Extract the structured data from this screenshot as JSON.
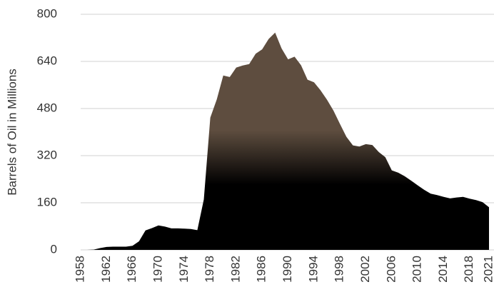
{
  "chart_data": {
    "type": "area",
    "y_label": "Barrels of Oil in Millions",
    "x": [
      1958,
      1959,
      1960,
      1961,
      1962,
      1963,
      1964,
      1965,
      1966,
      1967,
      1968,
      1969,
      1970,
      1971,
      1972,
      1973,
      1974,
      1975,
      1976,
      1977,
      1978,
      1979,
      1980,
      1981,
      1982,
      1983,
      1984,
      1985,
      1986,
      1987,
      1988,
      1989,
      1990,
      1991,
      1992,
      1993,
      1994,
      1995,
      1996,
      1997,
      1998,
      1999,
      2000,
      2001,
      2002,
      2003,
      2004,
      2005,
      2006,
      2007,
      2008,
      2009,
      2010,
      2011,
      2012,
      2013,
      2014,
      2015,
      2016,
      2017,
      2018,
      2019,
      2020,
      2021
    ],
    "values": [
      0,
      0,
      1,
      6,
      10,
      11,
      11,
      11,
      14,
      29,
      66,
      74,
      83,
      79,
      73,
      73,
      72,
      71,
      67,
      171,
      449,
      511,
      592,
      587,
      619,
      626,
      631,
      666,
      681,
      716,
      738,
      684,
      647,
      656,
      627,
      578,
      569,
      542,
      510,
      473,
      428,
      384,
      355,
      351,
      359,
      356,
      332,
      315,
      270,
      262,
      250,
      235,
      219,
      204,
      191,
      186,
      180,
      175,
      178,
      180,
      174,
      169,
      162,
      145
    ],
    "xlim": [
      1958,
      2021
    ],
    "xticks": [
      1958,
      1962,
      1966,
      1970,
      1974,
      1978,
      1982,
      1986,
      1990,
      1994,
      1998,
      2002,
      2006,
      2010,
      2014,
      2018,
      2021
    ],
    "ylim": [
      0,
      800
    ],
    "yticks": [
      0,
      160,
      320,
      480,
      640,
      800
    ],
    "grid": true,
    "color_top": "#5e4d3f",
    "color_bottom": "#000000"
  }
}
